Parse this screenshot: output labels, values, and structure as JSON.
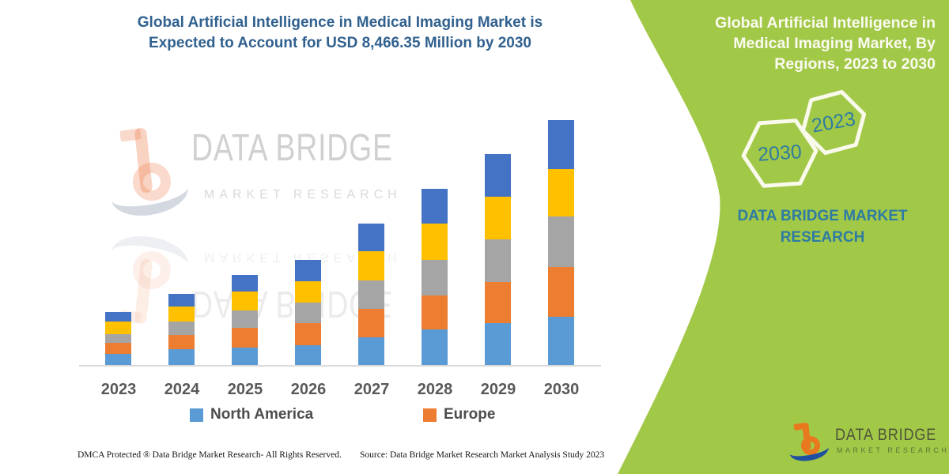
{
  "title_lines": [
    "Global Artificial Intelligence in Medical Imaging Market is",
    "Expected to Account for USD 8,466.35 Million by 2030"
  ],
  "watermark": {
    "brand": "DATA BRIDGE",
    "sub": "MARKET RESEARCH"
  },
  "chart_data": {
    "type": "bar",
    "stacked": true,
    "title": "Global Artificial Intelligence in Medical Imaging Market is Expected to Account for USD 8,466.35 Million by 2030",
    "categories": [
      "2023",
      "2024",
      "2025",
      "2026",
      "2027",
      "2028",
      "2029",
      "2030"
    ],
    "series": [
      {
        "name": "North America",
        "color": "#5B9BD5",
        "in_legend": true,
        "values": [
          390,
          540,
          595,
          690,
          965,
          1230,
          1440,
          1660
        ]
      },
      {
        "name": "Europe",
        "color": "#ED7D31",
        "in_legend": true,
        "values": [
          380,
          490,
          685,
          765,
          985,
          1185,
          1430,
          1720
        ]
      },
      {
        "name": null,
        "color": "#A5A5A5",
        "in_legend": false,
        "values": [
          300,
          475,
          610,
          710,
          985,
          1230,
          1475,
          1750
        ]
      },
      {
        "name": null,
        "color": "#FFC000",
        "in_legend": false,
        "values": [
          430,
          505,
          645,
          740,
          985,
          1250,
          1475,
          1640
        ]
      },
      {
        "name": null,
        "color": "#4472C4",
        "in_legend": false,
        "values": [
          345,
          445,
          575,
          740,
          955,
          1185,
          1465,
          1695
        ]
      }
    ],
    "values_unit": "USD Million (estimated from bar heights; 2030 total labeled 8,466.35)",
    "totals_estimated": [
      1845,
      2455,
      3110,
      3645,
      4875,
      6080,
      7285,
      8465
    ],
    "xlabel": "",
    "ylabel": "",
    "y_axis_visible": false,
    "grid": false,
    "legend_position": "bottom"
  },
  "legend": {
    "items": [
      {
        "label": "North America",
        "color": "#5B9BD5"
      },
      {
        "label": "Europe",
        "color": "#ED7D31"
      }
    ]
  },
  "footer": {
    "left": "DMCA Protected ® Data Bridge Market Research- All Rights Reserved.",
    "right": "Source: Data Bridge Market Research Market Analysis Study 2023"
  },
  "side_panel": {
    "heading_lines": [
      "Global Artificial Intelligence in",
      "Medical Imaging Market, By",
      "Regions, 2023 to 2030"
    ],
    "hexagons": [
      {
        "label": "2030"
      },
      {
        "label": "2023"
      }
    ],
    "brand_lines": [
      "DATA BRIDGE MARKET",
      "RESEARCH"
    ],
    "logo": {
      "brand": "DATA BRIDGE",
      "sub": "MARKET RESEARCH"
    }
  },
  "colors": {
    "panel_green": "#A2C848",
    "title_blue": "#31618F",
    "teal_text": "#2E7BA4",
    "axis_label_gray": "#595959",
    "axis_line": "#D9D9D9",
    "hexagon_outline": "#FAFAEC",
    "logo_orange": "#E8791E",
    "logo_blue": "#1F4FA0"
  }
}
